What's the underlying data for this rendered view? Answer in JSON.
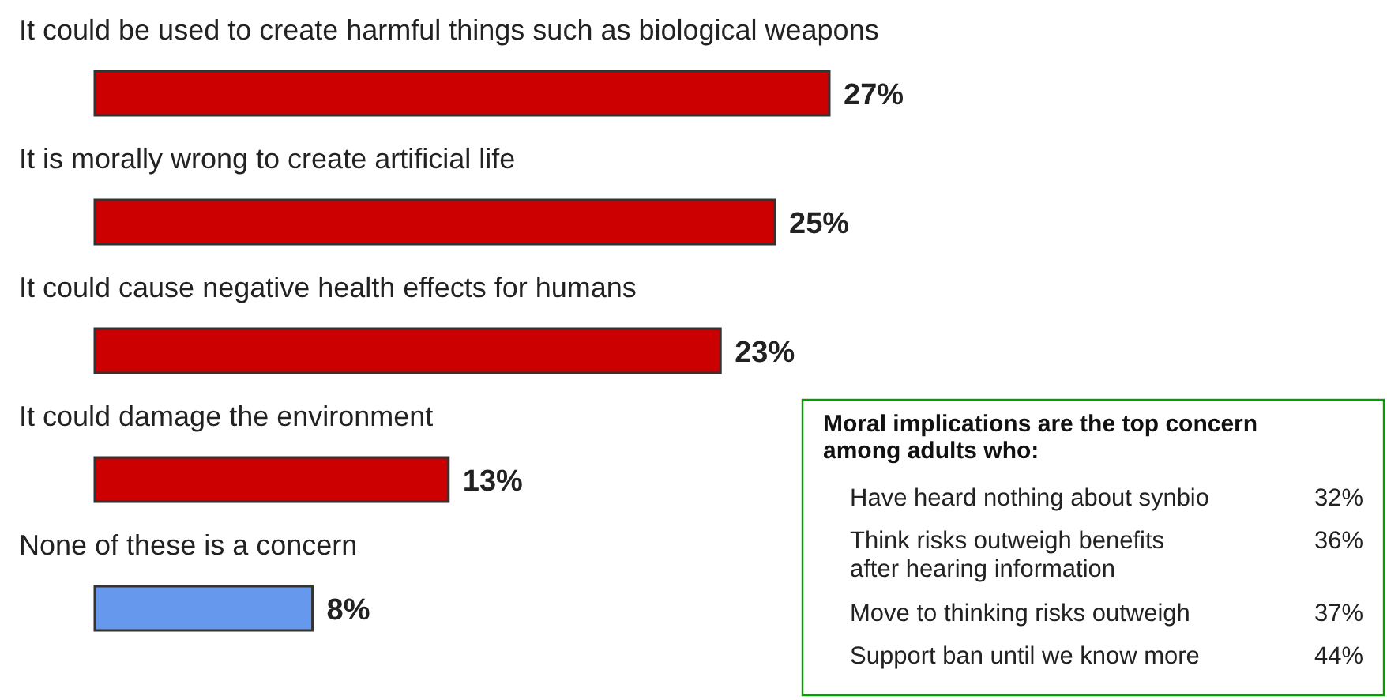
{
  "chart_data": [
    {
      "type": "bar",
      "orientation": "horizontal",
      "categories": [
        "It could be used to create harmful things such as biological weapons",
        "It is morally wrong to create artificial life",
        "It could cause negative health effects for humans",
        "It could damage the environment",
        "None of these is a concern"
      ],
      "values": [
        27,
        25,
        23,
        13,
        8
      ],
      "colors": [
        "#cc0000",
        "#cc0000",
        "#cc0000",
        "#cc0000",
        "#6699ee"
      ],
      "value_labels": [
        "27%",
        "25%",
        "23%",
        "13%",
        "8%"
      ]
    },
    {
      "type": "other",
      "title": "Moral implications are the top concern among adults who:",
      "categories": [
        "Have heard nothing about synbio",
        "Think risks outweigh benefits after hearing information",
        "Move to thinking risks outweigh",
        "Support ban until we know more"
      ],
      "value_labels": [
        "32%",
        "36%",
        "37%",
        "44%"
      ],
      "color": "#00a000"
    }
  ]
}
